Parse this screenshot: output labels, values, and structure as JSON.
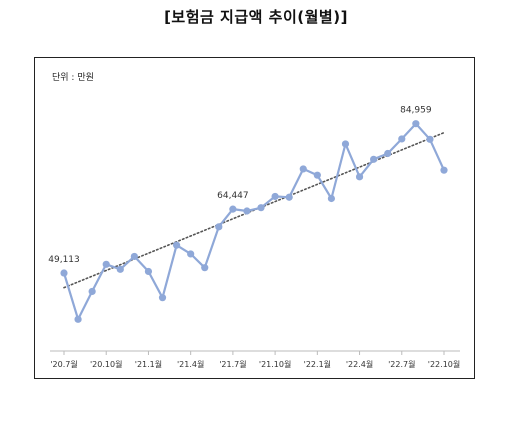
{
  "title": "[보험금 지급액 추이(월별)]",
  "unit": "단위 : 만원",
  "chart_data": {
    "type": "line",
    "title": "[보험금 지급액 추이(월별)]",
    "unit": "단위 : 만원",
    "x": [
      "20.7",
      "20.8",
      "20.9",
      "20.10",
      "20.11",
      "20.12",
      "21.1",
      "21.2",
      "21.3",
      "21.4",
      "21.5",
      "21.6",
      "21.7",
      "21.8",
      "21.9",
      "21.10",
      "21.11",
      "21.12",
      "22.1",
      "22.2",
      "22.3",
      "22.4",
      "22.5",
      "22.6",
      "22.7",
      "22.8",
      "22.9",
      "22.10"
    ],
    "tick_labels": [
      "'20.7월",
      "'20.10월",
      "'21.1월",
      "'21.4월",
      "'21.7월",
      "'21.10월",
      "'22.1월",
      "'22.4월",
      "'22.7월",
      "'22.10월"
    ],
    "tick_index": [
      0,
      3,
      6,
      9,
      12,
      15,
      18,
      21,
      24,
      27
    ],
    "series": [
      {
        "color": "#8fa8d8",
        "values": [
          49113,
          38000,
          44700,
          51200,
          50000,
          53100,
          49500,
          43200,
          55800,
          53700,
          50400,
          60200,
          64447,
          64000,
          64800,
          67500,
          67300,
          74100,
          72600,
          67000,
          80100,
          72200,
          76400,
          77800,
          81300,
          84959,
          81200,
          73800
        ]
      }
    ],
    "trendline": {
      "style": "dotted",
      "color": "#555555",
      "start": 45600,
      "end": 82800
    },
    "data_labels": [
      {
        "index": 0,
        "text": "49,113"
      },
      {
        "index": 12,
        "text": "64,447"
      },
      {
        "index": 25,
        "text": "84,959"
      }
    ],
    "ylim": [
      34000,
      94000
    ],
    "grid": false,
    "legend": "none"
  }
}
